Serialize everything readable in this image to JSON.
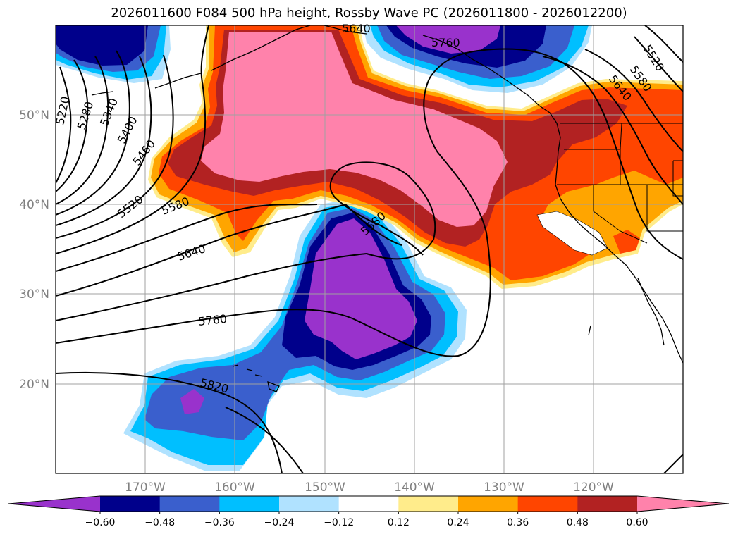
{
  "title": "2026011600 F084 500 hPa height, Rossby Wave PC (2026011800 - 2026012200)",
  "map": {
    "lon_labels": [
      "170°W",
      "160°W",
      "150°W",
      "140°W",
      "130°W",
      "120°W"
    ],
    "lat_labels": [
      "50°N",
      "40°N",
      "30°N",
      "20°N"
    ],
    "contour_labels": [
      "5220",
      "5280",
      "5340",
      "5400",
      "5460",
      "5520",
      "5580",
      "5640",
      "5760",
      "5820",
      "5580",
      "5520",
      "5580",
      "5640",
      "5640",
      "5760"
    ]
  },
  "colorbar": {
    "levels": [
      -0.6,
      -0.48,
      -0.36,
      -0.24,
      -0.12,
      0.12,
      0.24,
      0.36,
      0.48,
      0.6
    ],
    "tick_labels": [
      "−0.60",
      "−0.48",
      "−0.36",
      "−0.24",
      "−0.12",
      "0.12",
      "0.24",
      "0.36",
      "0.48",
      "0.60"
    ],
    "colors": [
      "#9932cc",
      "#00008b",
      "#3a5fcd",
      "#00bfff",
      "#b0e2ff",
      "#ffffff",
      "#ffec8b",
      "#ffa500",
      "#ff4500",
      "#b22222",
      "#ff82ab"
    ]
  }
}
